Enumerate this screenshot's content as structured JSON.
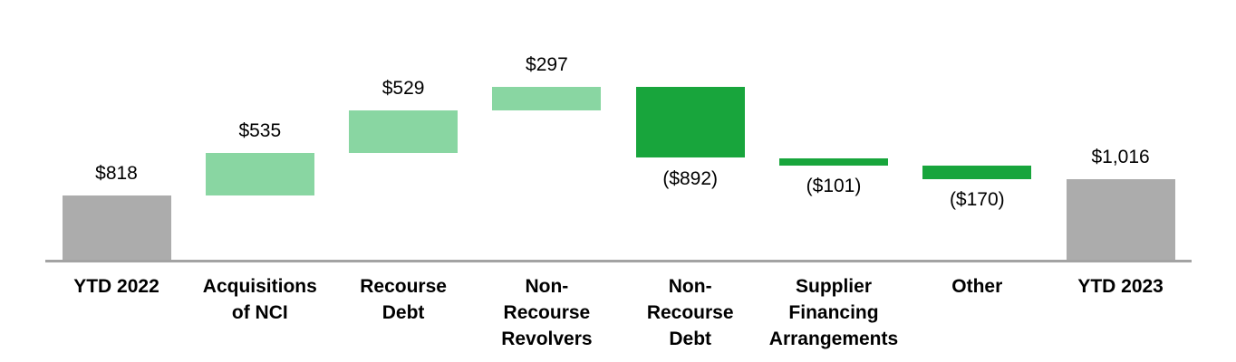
{
  "chart_data": {
    "type": "bar",
    "subtype": "waterfall",
    "title": "",
    "xlabel": "",
    "ylabel": "",
    "legend": {
      "visible": false
    },
    "grid": false,
    "y_axis_visible": false,
    "x_axis_visible": true,
    "baseline_value": 0,
    "categories": [
      "YTD 2022",
      "Acquisitions of NCI",
      "Recourse Debt",
      "Non-Recourse Revolvers",
      "Non-Recourse Debt",
      "Supplier Financing Arrangements",
      "Other",
      "YTD 2023"
    ],
    "steps": [
      {
        "category": "YTD 2022",
        "category_lines": [
          "YTD 2022"
        ],
        "type": "total",
        "value": 818,
        "cumulative": 818,
        "label": "$818",
        "label_position": "above"
      },
      {
        "category": "Acquisitions of NCI",
        "category_lines": [
          "Acquisitions",
          "of NCI"
        ],
        "type": "increase",
        "value": 535,
        "cumulative": 1353,
        "label": "$535",
        "label_position": "above"
      },
      {
        "category": "Recourse Debt",
        "category_lines": [
          "Recourse",
          "Debt"
        ],
        "type": "increase",
        "value": 529,
        "cumulative": 1882,
        "label": "$529",
        "label_position": "above"
      },
      {
        "category": "Non-Recourse Revolvers",
        "category_lines": [
          "Non-",
          "Recourse",
          "Revolvers"
        ],
        "type": "increase",
        "value": 297,
        "cumulative": 2179,
        "label": "$297",
        "label_position": "above"
      },
      {
        "category": "Non-Recourse Debt",
        "category_lines": [
          "Non-",
          "Recourse",
          "Debt"
        ],
        "type": "decrease",
        "value": -892,
        "cumulative": 1287,
        "label": "($892)",
        "label_position": "below"
      },
      {
        "category": "Supplier Financing Arrangements",
        "category_lines": [
          "Supplier",
          "Financing",
          "Arrangements"
        ],
        "type": "decrease",
        "value": -101,
        "cumulative": 1186,
        "label": "($101)",
        "label_position": "below"
      },
      {
        "category": "Other",
        "category_lines": [
          "Other"
        ],
        "type": "decrease",
        "value": -170,
        "cumulative": 1016,
        "label": "($170)",
        "label_position": "below"
      },
      {
        "category": "YTD 2023",
        "category_lines": [
          "YTD 2023"
        ],
        "type": "total",
        "value": 1016,
        "cumulative": 1016,
        "label": "$1,016",
        "label_position": "above"
      }
    ],
    "colors": {
      "total": "#ACACAC",
      "increase": "#89D6A2",
      "decrease": "#18A53C",
      "axis": "#A3A3A3",
      "text": "#000000",
      "background": "#FFFFFF"
    }
  }
}
